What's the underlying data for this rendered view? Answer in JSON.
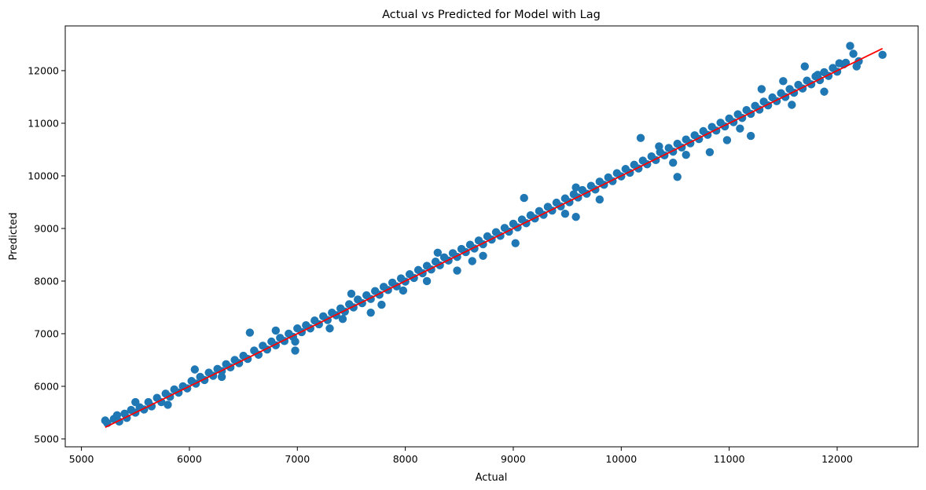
{
  "chart_data": {
    "type": "scatter",
    "title": "Actual vs Predicted for Model with Lag",
    "xlabel": "Actual",
    "ylabel": "Predicted",
    "xlim": [
      4850,
      12750
    ],
    "ylim": [
      4850,
      12850
    ],
    "xticks": [
      5000,
      6000,
      7000,
      8000,
      9000,
      10000,
      11000,
      12000
    ],
    "yticks": [
      5000,
      6000,
      7000,
      8000,
      9000,
      10000,
      11000,
      12000
    ],
    "grid": false,
    "colors": {
      "points": "#1f77b4",
      "line": "#ff0000"
    },
    "series": [
      {
        "kind": "scatter",
        "points": [
          [
            5220,
            5350
          ],
          [
            5240,
            5300
          ],
          [
            5300,
            5380
          ],
          [
            5330,
            5450
          ],
          [
            5350,
            5330
          ],
          [
            5400,
            5480
          ],
          [
            5420,
            5400
          ],
          [
            5460,
            5550
          ],
          [
            5500,
            5500
          ],
          [
            5540,
            5600
          ],
          [
            5580,
            5560
          ],
          [
            5620,
            5700
          ],
          [
            5650,
            5620
          ],
          [
            5700,
            5780
          ],
          [
            5740,
            5700
          ],
          [
            5780,
            5860
          ],
          [
            5820,
            5800
          ],
          [
            5860,
            5940
          ],
          [
            5900,
            5880
          ],
          [
            5940,
            6000
          ],
          [
            5980,
            5960
          ],
          [
            6020,
            6100
          ],
          [
            6060,
            6050
          ],
          [
            6100,
            6180
          ],
          [
            6140,
            6120
          ],
          [
            6180,
            6260
          ],
          [
            6220,
            6200
          ],
          [
            6260,
            6330
          ],
          [
            6300,
            6290
          ],
          [
            6340,
            6420
          ],
          [
            6380,
            6360
          ],
          [
            6420,
            6500
          ],
          [
            6460,
            6440
          ],
          [
            6500,
            6580
          ],
          [
            6540,
            6520
          ],
          [
            6560,
            7020
          ],
          [
            6600,
            6680
          ],
          [
            6640,
            6600
          ],
          [
            6680,
            6770
          ],
          [
            6720,
            6700
          ],
          [
            6760,
            6850
          ],
          [
            6800,
            6780
          ],
          [
            6840,
            6920
          ],
          [
            6880,
            6860
          ],
          [
            6920,
            7000
          ],
          [
            6960,
            6940
          ],
          [
            6980,
            6680
          ],
          [
            7000,
            7100
          ],
          [
            7040,
            7030
          ],
          [
            7080,
            7160
          ],
          [
            7120,
            7100
          ],
          [
            7160,
            7250
          ],
          [
            7200,
            7180
          ],
          [
            7240,
            7330
          ],
          [
            7280,
            7260
          ],
          [
            7320,
            7400
          ],
          [
            7360,
            7350
          ],
          [
            7400,
            7480
          ],
          [
            7440,
            7420
          ],
          [
            7480,
            7560
          ],
          [
            7520,
            7500
          ],
          [
            7560,
            7650
          ],
          [
            7600,
            7580
          ],
          [
            7640,
            7730
          ],
          [
            7680,
            7660
          ],
          [
            7720,
            7810
          ],
          [
            7760,
            7740
          ],
          [
            7800,
            7890
          ],
          [
            7840,
            7830
          ],
          [
            7880,
            7970
          ],
          [
            7920,
            7900
          ],
          [
            7960,
            8050
          ],
          [
            8000,
            7990
          ],
          [
            8040,
            8130
          ],
          [
            8080,
            8060
          ],
          [
            8120,
            8210
          ],
          [
            8160,
            8150
          ],
          [
            8200,
            8290
          ],
          [
            8240,
            8220
          ],
          [
            8280,
            8370
          ],
          [
            8320,
            8300
          ],
          [
            8360,
            8450
          ],
          [
            8400,
            8390
          ],
          [
            8440,
            8530
          ],
          [
            8480,
            8460
          ],
          [
            8520,
            8610
          ],
          [
            8560,
            8550
          ],
          [
            8600,
            8690
          ],
          [
            8640,
            8620
          ],
          [
            8680,
            8770
          ],
          [
            8720,
            8700
          ],
          [
            8760,
            8850
          ],
          [
            8800,
            8790
          ],
          [
            8840,
            8930
          ],
          [
            8880,
            8860
          ],
          [
            8920,
            9010
          ],
          [
            8960,
            8940
          ],
          [
            9000,
            9090
          ],
          [
            9040,
            9020
          ],
          [
            9080,
            9170
          ],
          [
            9120,
            9100
          ],
          [
            9160,
            9250
          ],
          [
            9200,
            9190
          ],
          [
            9240,
            9330
          ],
          [
            9280,
            9260
          ],
          [
            9320,
            9410
          ],
          [
            9360,
            9340
          ],
          [
            9400,
            9490
          ],
          [
            9440,
            9420
          ],
          [
            9480,
            9570
          ],
          [
            9520,
            9500
          ],
          [
            9560,
            9650
          ],
          [
            9600,
            9590
          ],
          [
            9640,
            9730
          ],
          [
            9680,
            9660
          ],
          [
            9720,
            9810
          ],
          [
            9760,
            9740
          ],
          [
            9800,
            9890
          ],
          [
            9840,
            9830
          ],
          [
            9880,
            9970
          ],
          [
            9920,
            9900
          ],
          [
            9960,
            10050
          ],
          [
            10000,
            9990
          ],
          [
            10040,
            10130
          ],
          [
            10080,
            10060
          ],
          [
            10120,
            10210
          ],
          [
            10160,
            10140
          ],
          [
            10200,
            10290
          ],
          [
            10240,
            10220
          ],
          [
            10280,
            10370
          ],
          [
            10320,
            10300
          ],
          [
            10360,
            10450
          ],
          [
            10400,
            10390
          ],
          [
            10440,
            10530
          ],
          [
            10480,
            10460
          ],
          [
            10520,
            10610
          ],
          [
            10560,
            10540
          ],
          [
            10600,
            10690
          ],
          [
            10640,
            10620
          ],
          [
            10680,
            10770
          ],
          [
            10720,
            10700
          ],
          [
            10760,
            10850
          ],
          [
            10800,
            10780
          ],
          [
            10840,
            10930
          ],
          [
            10880,
            10860
          ],
          [
            10920,
            11010
          ],
          [
            10960,
            10940
          ],
          [
            11000,
            11090
          ],
          [
            11040,
            11020
          ],
          [
            11080,
            11170
          ],
          [
            11120,
            11100
          ],
          [
            11160,
            11250
          ],
          [
            11200,
            11180
          ],
          [
            11240,
            11330
          ],
          [
            11280,
            11260
          ],
          [
            11320,
            11410
          ],
          [
            11360,
            11340
          ],
          [
            11400,
            11490
          ],
          [
            11440,
            11420
          ],
          [
            11480,
            11570
          ],
          [
            11520,
            11500
          ],
          [
            11560,
            11650
          ],
          [
            11600,
            11580
          ],
          [
            11640,
            11730
          ],
          [
            11680,
            11660
          ],
          [
            11720,
            11810
          ],
          [
            11760,
            11740
          ],
          [
            11800,
            11890
          ],
          [
            11840,
            11820
          ],
          [
            11880,
            11970
          ],
          [
            11920,
            11900
          ],
          [
            11960,
            12050
          ],
          [
            12000,
            11980
          ],
          [
            12060,
            12120
          ],
          [
            12120,
            12470
          ],
          [
            12150,
            12320
          ],
          [
            12180,
            12080
          ],
          [
            12200,
            12180
          ],
          [
            12420,
            12300
          ],
          [
            9100,
            9580
          ],
          [
            10180,
            10720
          ],
          [
            11700,
            12080
          ],
          [
            11820,
            11920
          ],
          [
            12020,
            12140
          ],
          [
            11500,
            11800
          ],
          [
            11300,
            11650
          ],
          [
            11200,
            10760
          ],
          [
            10820,
            10450
          ],
          [
            10980,
            10680
          ],
          [
            10480,
            10250
          ],
          [
            10520,
            9980
          ],
          [
            9580,
            9220
          ],
          [
            9480,
            9280
          ],
          [
            8720,
            8480
          ],
          [
            9020,
            8720
          ],
          [
            8480,
            8200
          ],
          [
            7980,
            7820
          ],
          [
            7780,
            7550
          ],
          [
            7420,
            7280
          ],
          [
            6300,
            6180
          ],
          [
            6980,
            6850
          ],
          [
            7680,
            7400
          ],
          [
            5800,
            5650
          ],
          [
            11580,
            11350
          ],
          [
            11880,
            11600
          ],
          [
            12080,
            12150
          ],
          [
            10350,
            10560
          ],
          [
            9580,
            9780
          ],
          [
            8300,
            8540
          ],
          [
            7500,
            7760
          ],
          [
            6800,
            7060
          ],
          [
            6050,
            6320
          ],
          [
            5500,
            5700
          ],
          [
            10600,
            10400
          ],
          [
            11100,
            10900
          ],
          [
            9800,
            9550
          ],
          [
            8620,
            8380
          ],
          [
            8200,
            8000
          ],
          [
            7300,
            7100
          ]
        ]
      },
      {
        "kind": "line",
        "points": [
          [
            5220,
            5220
          ],
          [
            12420,
            12420
          ]
        ]
      }
    ]
  }
}
